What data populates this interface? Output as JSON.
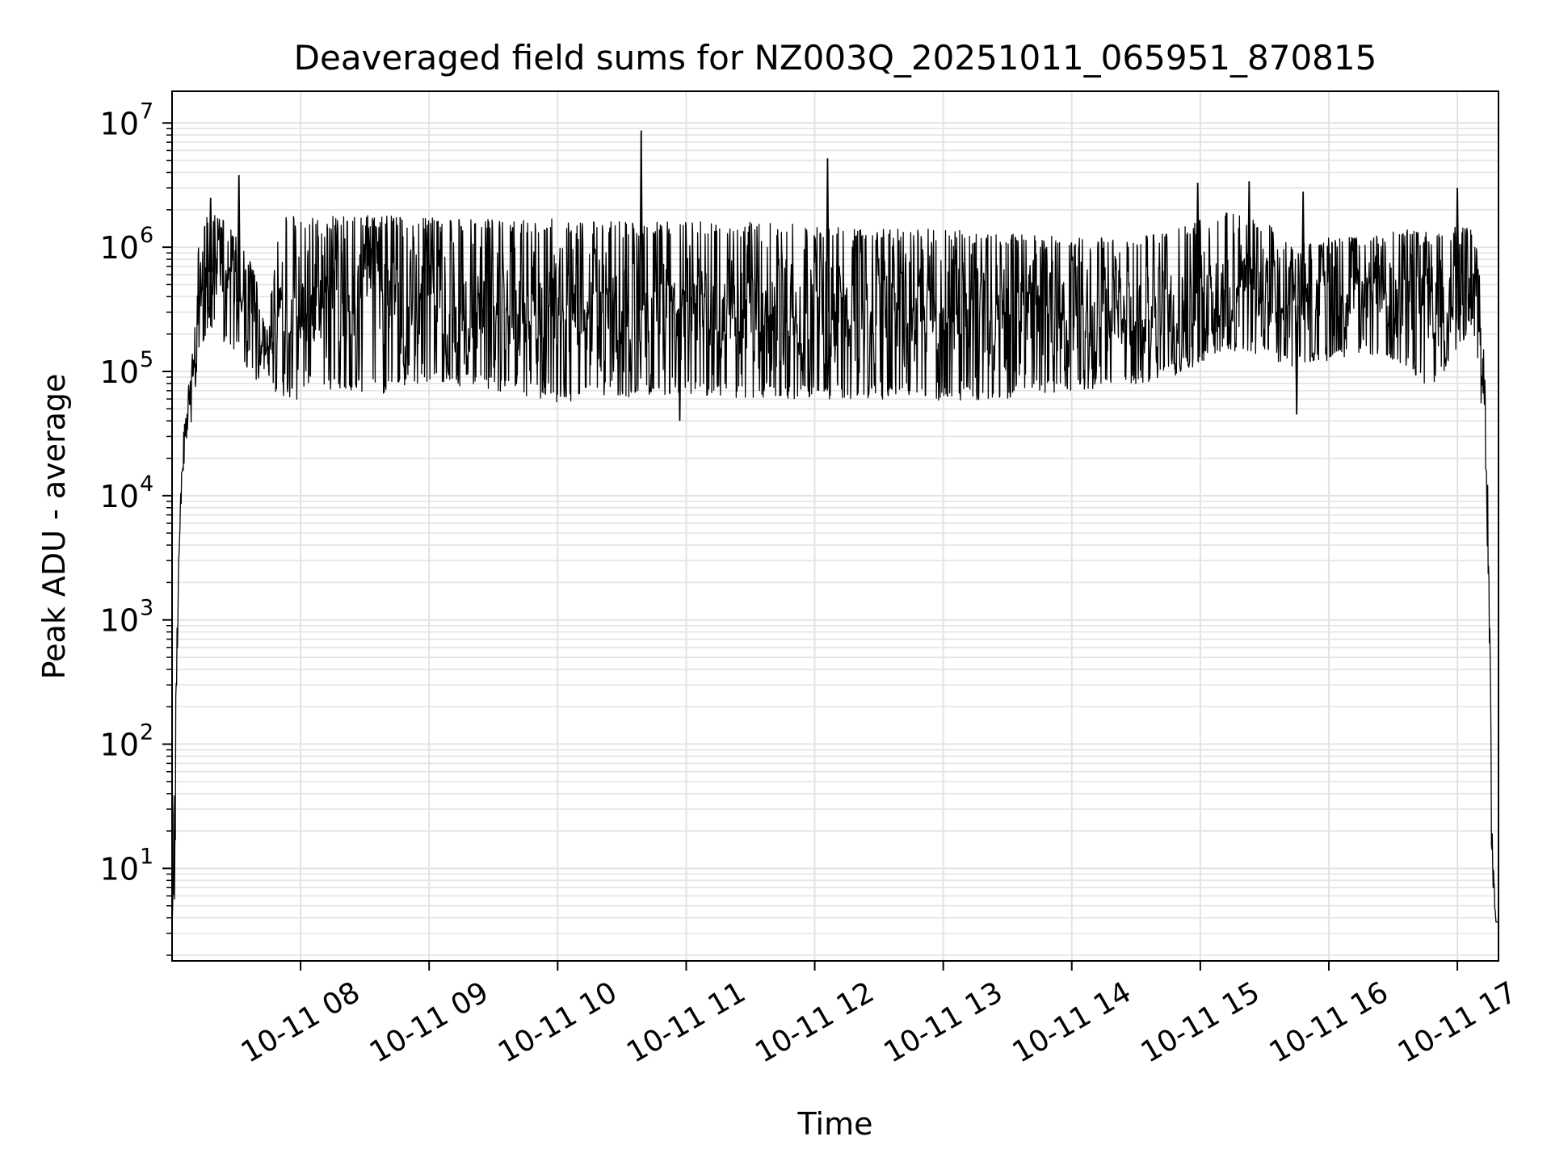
{
  "chart_data": {
    "type": "line",
    "title": "Deaveraged field sums for NZ003Q_20251011_065951_870815",
    "xlabel": "Time",
    "ylabel": "Peak ADU - average",
    "yscale": "log",
    "ylim": [
      1.8,
      18000000
    ],
    "xlim_hours": [
      7.0,
      17.32
    ],
    "grid": true,
    "line_color": "#000000",
    "grid_color": "#e3e3e3",
    "x_ticks": [
      {
        "label": "10-11 08",
        "hour": 8
      },
      {
        "label": "10-11 09",
        "hour": 9
      },
      {
        "label": "10-11 10",
        "hour": 10
      },
      {
        "label": "10-11 11",
        "hour": 11
      },
      {
        "label": "10-11 12",
        "hour": 12
      },
      {
        "label": "10-11 13",
        "hour": 13
      },
      {
        "label": "10-11 14",
        "hour": 14
      },
      {
        "label": "10-11 15",
        "hour": 15
      },
      {
        "label": "10-11 16",
        "hour": 16
      },
      {
        "label": "10-11 17",
        "hour": 17
      }
    ],
    "y_ticks": [
      {
        "base": "10",
        "exp": "1",
        "value": 10
      },
      {
        "base": "10",
        "exp": "2",
        "value": 100
      },
      {
        "base": "10",
        "exp": "3",
        "value": 1000
      },
      {
        "base": "10",
        "exp": "4",
        "value": 10000
      },
      {
        "base": "10",
        "exp": "5",
        "value": 100000
      },
      {
        "base": "10",
        "exp": "6",
        "value": 1000000
      },
      {
        "base": "10",
        "exp": "7",
        "value": 10000000
      }
    ],
    "series": [
      {
        "name": "field sums",
        "envelope_hours": [
          7.0,
          7.03,
          7.05,
          7.08,
          7.15,
          7.22,
          7.3,
          7.45,
          7.6,
          7.75,
          7.85,
          8.0,
          8.1,
          8.3,
          8.6,
          9.0,
          9.3,
          9.7,
          10.0,
          10.4,
          10.7,
          11.0,
          11.5,
          12.0,
          12.5,
          13.0,
          13.5,
          14.0,
          14.5,
          14.9,
          15.2,
          15.5,
          15.7,
          16.0,
          16.3,
          16.6,
          16.8,
          17.0,
          17.1,
          17.15,
          17.2,
          17.24,
          17.27,
          17.3,
          17.32
        ],
        "envelope_low": [
          3.7,
          3.7,
          2500,
          10000,
          40000,
          150000,
          200000,
          150000,
          90000,
          65000,
          55000,
          60000,
          75000,
          70000,
          65000,
          80000,
          75000,
          65000,
          55000,
          60000,
          60000,
          65000,
          60000,
          60000,
          60000,
          58000,
          60000,
          70000,
          75000,
          100000,
          150000,
          130000,
          110000,
          120000,
          140000,
          110000,
          70000,
          150000,
          200000,
          150000,
          30000,
          1000,
          5,
          3.7,
          3.7
        ],
        "envelope_high": [
          3.7,
          400,
          3500,
          30000,
          300000,
          1500000,
          2000000,
          1500000,
          800000,
          300000,
          1800000,
          1800000,
          1800000,
          1800000,
          1800000,
          1800000,
          1700000,
          1700000,
          1700000,
          1600000,
          1600000,
          1600000,
          1600000,
          1500000,
          1400000,
          1400000,
          1300000,
          1200000,
          1200000,
          1500000,
          2000000,
          1700000,
          1000000,
          1200000,
          1200000,
          1400000,
          1300000,
          1500000,
          1500000,
          1000000,
          300000,
          10000,
          30,
          3.7,
          3.7
        ],
        "spikes": [
          {
            "hour": 7.3,
            "value": 2500000
          },
          {
            "hour": 7.52,
            "value": 3800000
          },
          {
            "hour": 10.65,
            "value": 8700000
          },
          {
            "hour": 12.1,
            "value": 5200000
          },
          {
            "hour": 14.98,
            "value": 3300000
          },
          {
            "hour": 15.38,
            "value": 3400000
          },
          {
            "hour": 15.8,
            "value": 2800000
          },
          {
            "hour": 17.0,
            "value": 3000000
          },
          {
            "hour": 10.95,
            "value": 40000
          },
          {
            "hour": 15.75,
            "value": 45000
          }
        ]
      }
    ]
  }
}
